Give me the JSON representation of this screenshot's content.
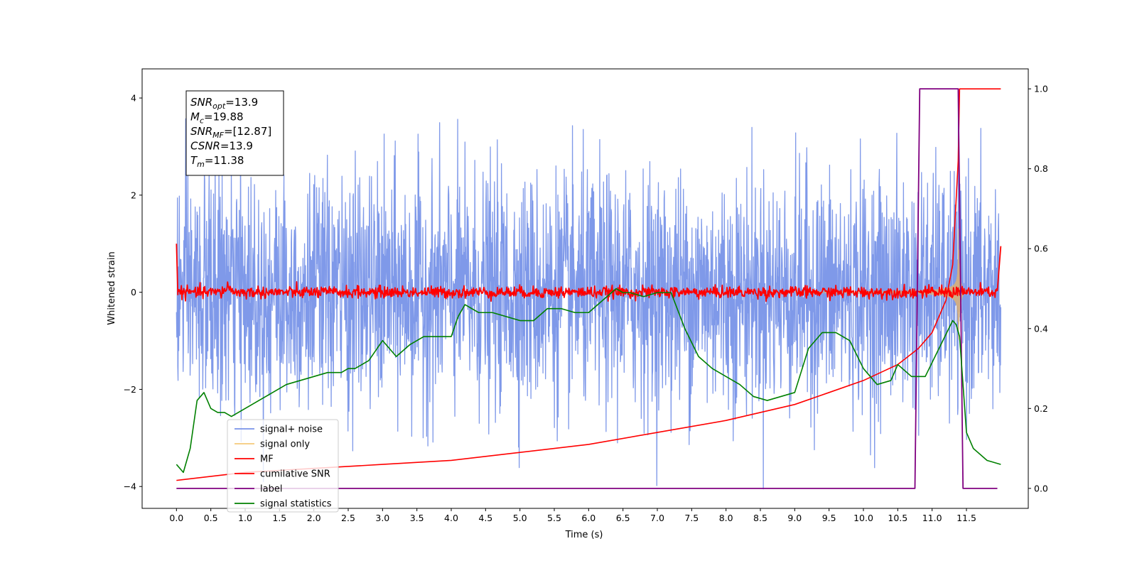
{
  "chart_data": {
    "type": "line",
    "title": "",
    "xlabel": "Time (s)",
    "ylabel": "Whitened strain",
    "xlim": [
      -0.5,
      12.4
    ],
    "ylim": [
      -4.45,
      4.6
    ],
    "y2lim": [
      -0.05,
      1.05
    ],
    "grid": false,
    "legend_position": "lower-left",
    "x_ticks": [
      "0.0",
      "0.5",
      "1.0",
      "1.5",
      "2.0",
      "2.5",
      "3.0",
      "3.5",
      "4.0",
      "4.5",
      "5.0",
      "5.5",
      "6.0",
      "6.5",
      "7.0",
      "7.5",
      "8.0",
      "8.5",
      "9.0",
      "9.5",
      "10.0",
      "10.5",
      "11.0",
      "11.5"
    ],
    "y_ticks": [
      "4",
      "2",
      "0",
      "−2",
      "−4"
    ],
    "y2_ticks": [
      "1.0",
      "0.8",
      "0.6",
      "0.4",
      "0.2",
      "0.0"
    ],
    "annotation": {
      "lines": [
        {
          "base": "SNR",
          "sub": "opt",
          "value": "=13.9"
        },
        {
          "base": "M",
          "sub": "c",
          "value": "=19.88"
        },
        {
          "base": "SNR",
          "sub": "MF",
          "value": "=[12.87]"
        },
        {
          "base": "CSNR",
          "sub": "",
          "value": "=13.9"
        },
        {
          "base": "T",
          "sub": "m",
          "value": "=11.38"
        }
      ]
    },
    "series": [
      {
        "name": "signal+ noise",
        "color": "#7893e8",
        "axis": "left",
        "style": "noise",
        "x_range": [
          0,
          12.0
        ],
        "std": 1.2
      },
      {
        "name": "signal only",
        "color": "#f5c97a",
        "axis": "left",
        "style": "chirp",
        "merger_time": 11.38
      },
      {
        "name": "MF",
        "color": "#ff0000",
        "axis": "left",
        "style": "mf",
        "x": [
          0.0,
          0.02,
          0.75,
          11.4,
          11.95,
          12.0
        ],
        "y": [
          1.0,
          -0.05,
          0.25,
          0.05,
          0.05,
          0.95
        ]
      },
      {
        "name": "cumilative SNR",
        "color": "#ff0000",
        "axis": "right",
        "x": [
          0.0,
          1.0,
          2.0,
          3.0,
          4.0,
          5.0,
          6.0,
          7.0,
          8.0,
          8.5,
          9.0,
          9.5,
          10.0,
          10.5,
          10.8,
          11.0,
          11.2,
          11.3,
          11.38,
          11.4,
          11.95,
          12.0
        ],
        "y": [
          0.02,
          0.04,
          0.05,
          0.06,
          0.07,
          0.09,
          0.11,
          0.14,
          0.17,
          0.19,
          0.21,
          0.24,
          0.27,
          0.31,
          0.35,
          0.39,
          0.47,
          0.56,
          0.82,
          1.0,
          1.0,
          1.0
        ]
      },
      {
        "name": "label",
        "color": "#800080",
        "axis": "right",
        "x": [
          0.0,
          10.75,
          10.82,
          11.35,
          11.38,
          11.45,
          11.95
        ],
        "y": [
          0.0,
          0.0,
          1.0,
          1.0,
          1.0,
          0.0,
          0.0
        ]
      },
      {
        "name": "signal statistics",
        "color": "#008000",
        "axis": "right",
        "x": [
          0.0,
          0.1,
          0.2,
          0.3,
          0.4,
          0.5,
          0.6,
          0.7,
          0.8,
          0.9,
          1.0,
          1.2,
          1.4,
          1.6,
          1.8,
          2.0,
          2.2,
          2.4,
          2.5,
          2.6,
          2.8,
          3.0,
          3.2,
          3.4,
          3.6,
          3.8,
          4.0,
          4.1,
          4.2,
          4.4,
          4.6,
          4.8,
          5.0,
          5.2,
          5.4,
          5.6,
          5.8,
          6.0,
          6.2,
          6.4,
          6.5,
          6.6,
          6.8,
          7.0,
          7.2,
          7.4,
          7.6,
          7.8,
          8.0,
          8.2,
          8.4,
          8.6,
          8.8,
          9.0,
          9.2,
          9.4,
          9.6,
          9.8,
          10.0,
          10.2,
          10.4,
          10.5,
          10.7,
          10.9,
          11.1,
          11.3,
          11.35,
          11.4,
          11.5,
          11.6,
          11.8,
          12.0
        ],
        "y": [
          0.06,
          0.04,
          0.1,
          0.22,
          0.24,
          0.2,
          0.19,
          0.19,
          0.18,
          0.19,
          0.2,
          0.22,
          0.24,
          0.26,
          0.27,
          0.28,
          0.29,
          0.29,
          0.3,
          0.3,
          0.32,
          0.37,
          0.33,
          0.36,
          0.38,
          0.38,
          0.38,
          0.43,
          0.46,
          0.44,
          0.44,
          0.43,
          0.42,
          0.42,
          0.45,
          0.45,
          0.44,
          0.44,
          0.47,
          0.5,
          0.49,
          0.49,
          0.48,
          0.49,
          0.49,
          0.4,
          0.33,
          0.3,
          0.28,
          0.26,
          0.23,
          0.22,
          0.23,
          0.24,
          0.35,
          0.39,
          0.39,
          0.37,
          0.3,
          0.26,
          0.27,
          0.31,
          0.28,
          0.28,
          0.35,
          0.42,
          0.41,
          0.38,
          0.14,
          0.1,
          0.07,
          0.06
        ]
      }
    ]
  }
}
